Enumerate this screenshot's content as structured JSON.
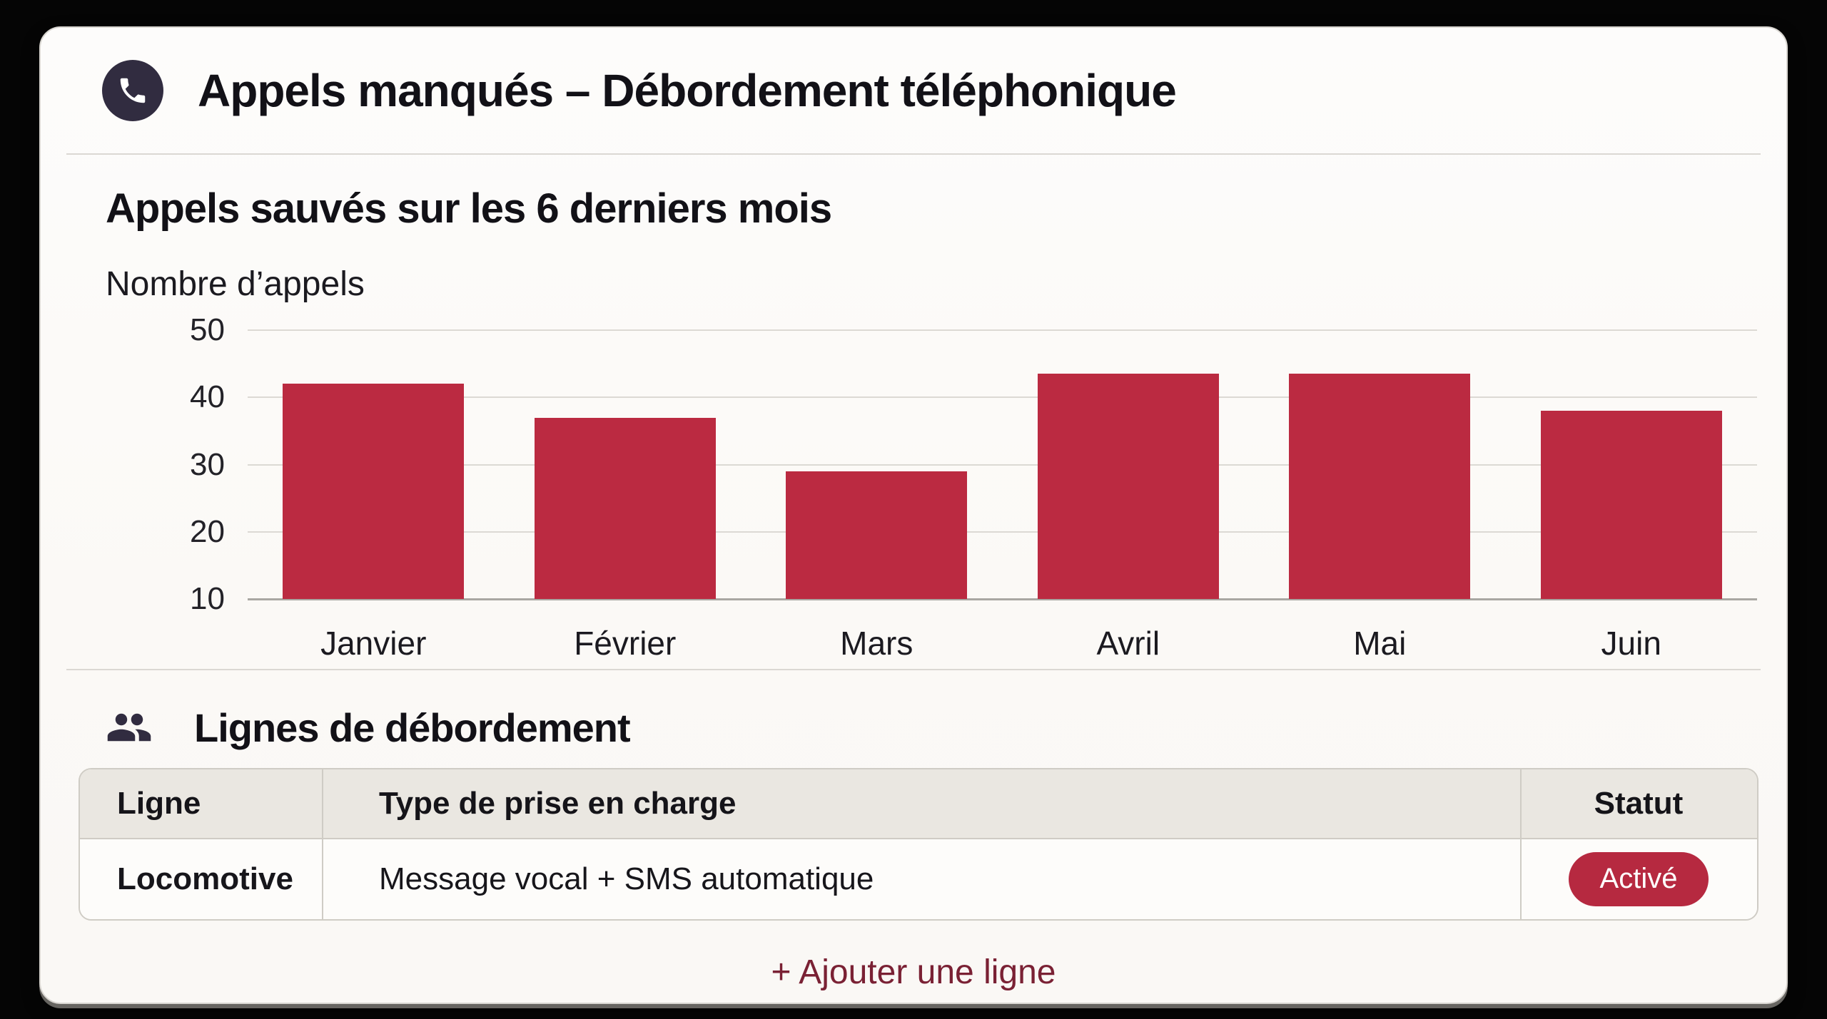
{
  "header": {
    "title": "Appels manqués – Débordement téléphonique"
  },
  "chart_section": {
    "title": "Appels sauvés sur les 6 derniers mois",
    "axis_label": "Nombre d’appels"
  },
  "chart_data": {
    "type": "bar",
    "title": "Appels sauvés sur les 6 derniers mois",
    "categories": [
      "Janvier",
      "Février",
      "Mars",
      "Avril",
      "Mai",
      "Juin"
    ],
    "values": [
      42,
      37,
      29,
      43.5,
      43.5,
      38
    ],
    "xlabel": "",
    "ylabel": "Nombre d’appels",
    "ylim": [
      10,
      50
    ],
    "yticks": [
      10,
      20,
      30,
      40,
      50
    ],
    "grid": true,
    "legend": false,
    "bar_color": "#bb2a41"
  },
  "overflow_section": {
    "title": "Lignes de débordement",
    "table": {
      "headers": [
        "Ligne",
        "Type de prise en charge",
        "Statut"
      ],
      "rows": [
        {
          "ligne": "Locomotive",
          "type": "Message vocal + SMS automatique",
          "statut": "Activé"
        }
      ]
    },
    "add_line_label": "+ Ajouter une ligne"
  },
  "colors": {
    "accent": "#bb2a41",
    "badge": "#b62940",
    "link": "#7a2134",
    "icon_background": "#312c40",
    "card_background": "#fbf9f6",
    "table_header_background": "#eae7e1",
    "page_background": "#050505"
  }
}
